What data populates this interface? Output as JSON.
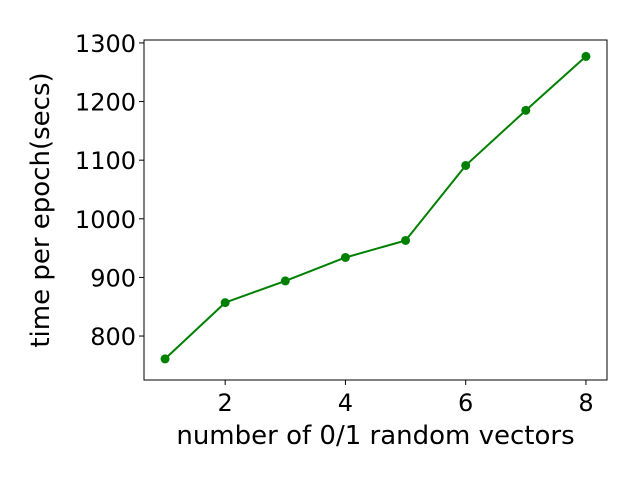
{
  "chart_data": {
    "type": "line",
    "title": "",
    "xlabel": "number of 0/1 random vectors",
    "ylabel": "time per epoch(secs)",
    "xlim": [
      0.65,
      8.35
    ],
    "ylim": [
      725,
      1305
    ],
    "xticks": [
      2,
      4,
      6,
      8
    ],
    "yticks": [
      800,
      900,
      1000,
      1100,
      1200,
      1300
    ],
    "grid": false,
    "legend": "none",
    "series": [
      {
        "color": "#008000",
        "marker": "circle",
        "x": [
          1,
          2,
          3,
          4,
          5,
          6,
          7,
          8
        ],
        "y": [
          761,
          857,
          894,
          934,
          963,
          1091,
          1185,
          1277
        ]
      }
    ]
  }
}
